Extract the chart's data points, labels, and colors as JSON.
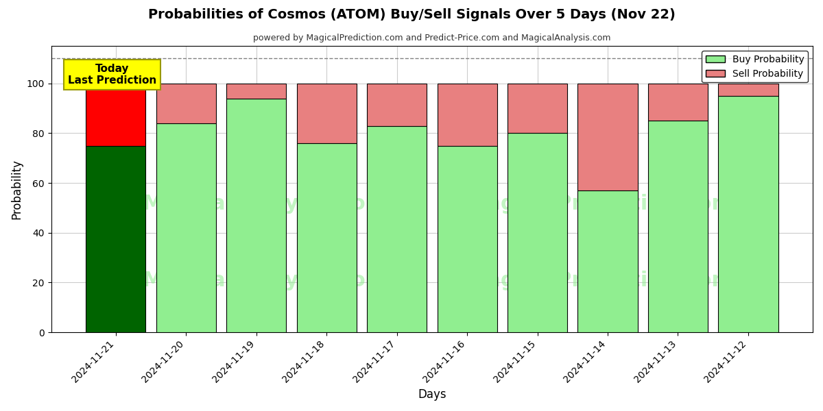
{
  "title": "Probabilities of Cosmos (ATOM) Buy/Sell Signals Over 5 Days (Nov 22)",
  "subtitle": "powered by MagicalPrediction.com and Predict-Price.com and MagicalAnalysis.com",
  "xlabel": "Days",
  "ylabel": "Probability",
  "dates": [
    "2024-11-21",
    "2024-11-20",
    "2024-11-19",
    "2024-11-18",
    "2024-11-17",
    "2024-11-16",
    "2024-11-15",
    "2024-11-14",
    "2024-11-13",
    "2024-11-12"
  ],
  "buy_values": [
    75,
    84,
    94,
    76,
    83,
    75,
    80,
    57,
    85,
    95
  ],
  "sell_values": [
    25,
    16,
    6,
    24,
    17,
    25,
    20,
    43,
    15,
    5
  ],
  "buy_colors": [
    "#006400",
    "#90EE90",
    "#90EE90",
    "#90EE90",
    "#90EE90",
    "#90EE90",
    "#90EE90",
    "#90EE90",
    "#90EE90",
    "#90EE90"
  ],
  "sell_colors": [
    "#FF0000",
    "#E88080",
    "#E88080",
    "#E88080",
    "#E88080",
    "#E88080",
    "#E88080",
    "#E88080",
    "#E88080",
    "#E88080"
  ],
  "legend_buy_color": "#90EE90",
  "legend_sell_color": "#E88080",
  "today_box_color": "#FFFF00",
  "today_text": "Today\nLast Prediction",
  "dashed_line_y": 110,
  "ylim": [
    0,
    115
  ],
  "yticks": [
    0,
    20,
    40,
    60,
    80,
    100
  ],
  "background_color": "#ffffff",
  "grid_color": "#cccccc",
  "bar_edge_color": "#000000",
  "bar_width": 0.85
}
